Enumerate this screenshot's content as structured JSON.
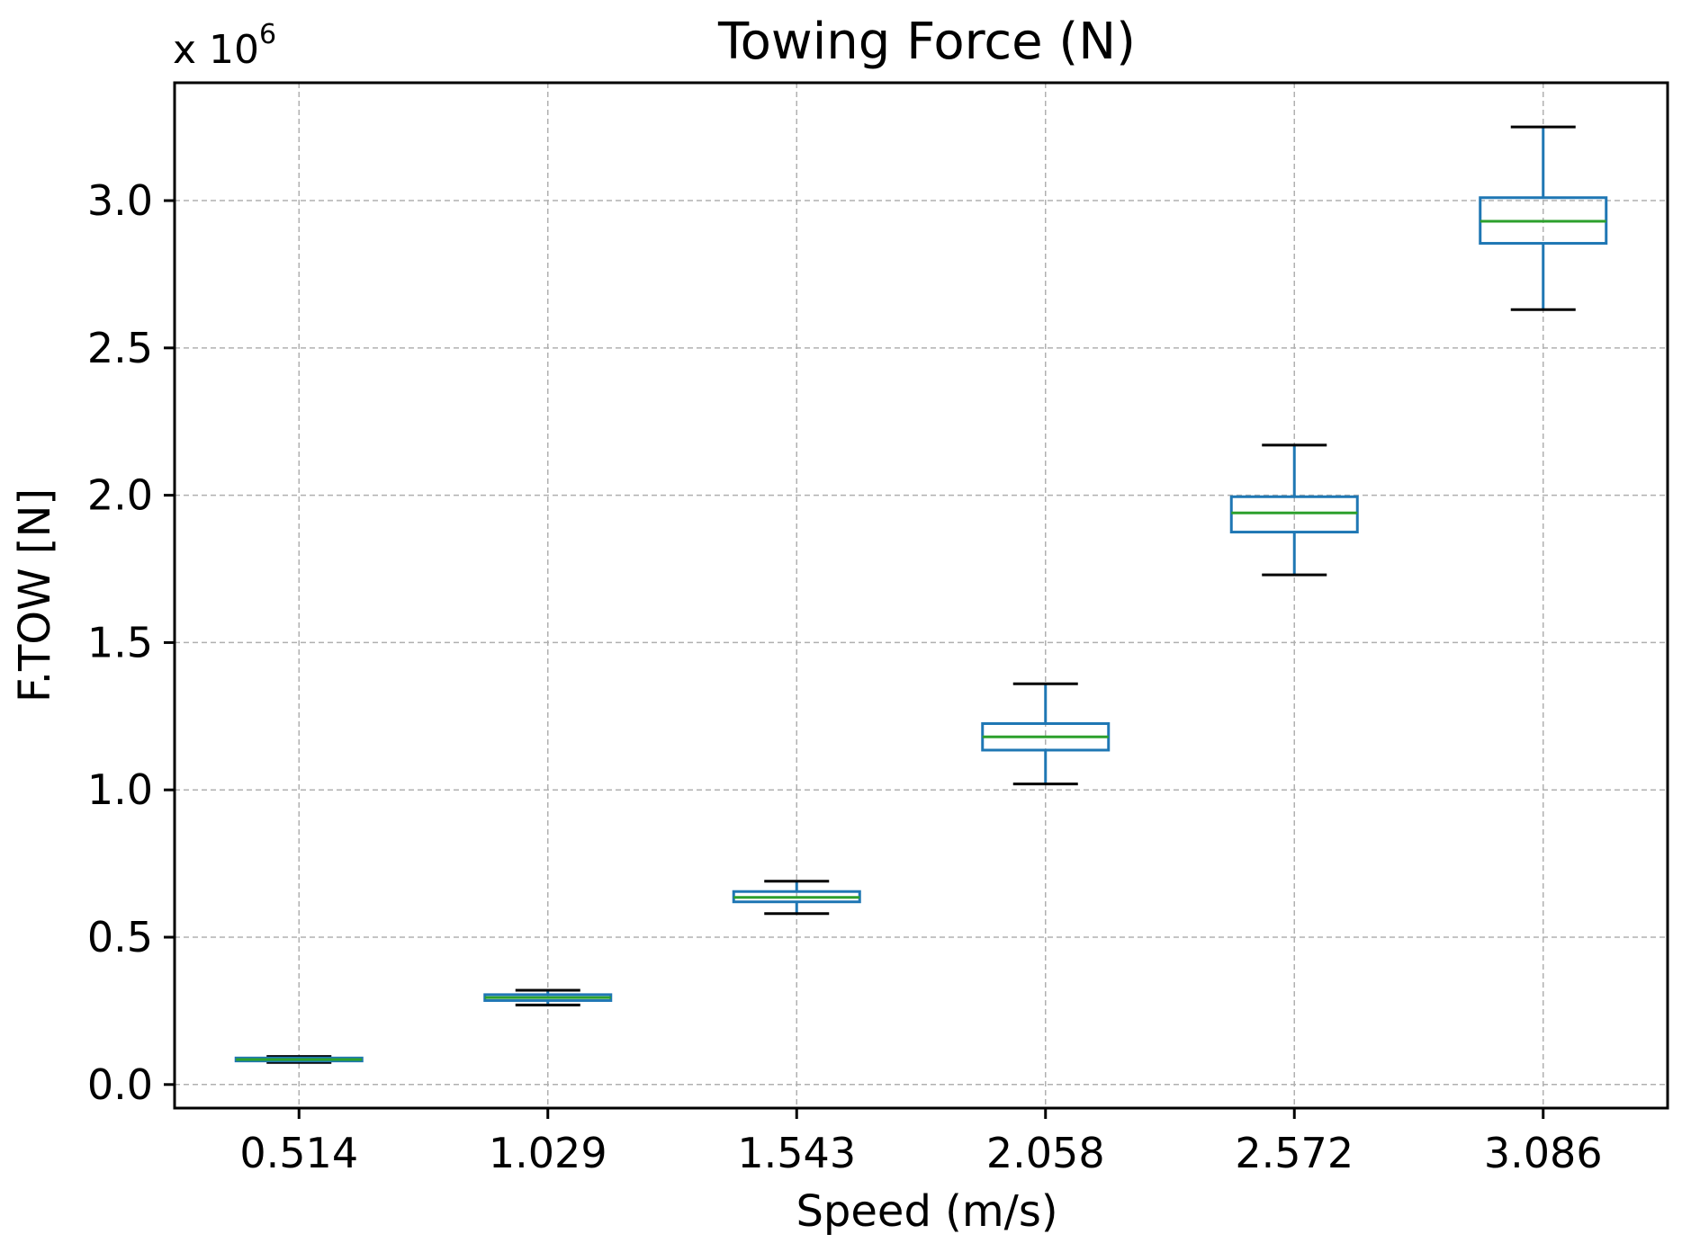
{
  "chart_data": {
    "type": "box",
    "title": "Towing Force (N)",
    "xlabel": "Speed (m/s)",
    "ylabel": "F.TOW [N]",
    "y_offset_label": "x 10",
    "y_offset_exponent": "6",
    "ylim": [
      -0.08,
      3.4
    ],
    "yticks": [
      0.0,
      0.5,
      1.0,
      1.5,
      2.0,
      2.5,
      3.0
    ],
    "ytick_labels": [
      "0.0",
      "0.5",
      "1.0",
      "1.5",
      "2.0",
      "2.5",
      "3.0"
    ],
    "categories": [
      "0.514",
      "1.029",
      "1.543",
      "2.058",
      "2.572",
      "3.086"
    ],
    "grid": true,
    "units_multiplier": 1000000,
    "boxes": [
      {
        "category": "0.514",
        "whisker_low": 0.075,
        "q1": 0.08,
        "median": 0.085,
        "q3": 0.09,
        "whisker_high": 0.095
      },
      {
        "category": "1.029",
        "whisker_low": 0.27,
        "q1": 0.285,
        "median": 0.295,
        "q3": 0.305,
        "whisker_high": 0.32
      },
      {
        "category": "1.543",
        "whisker_low": 0.58,
        "q1": 0.62,
        "median": 0.635,
        "q3": 0.655,
        "whisker_high": 0.69
      },
      {
        "category": "2.058",
        "whisker_low": 1.02,
        "q1": 1.135,
        "median": 1.18,
        "q3": 1.225,
        "whisker_high": 1.36
      },
      {
        "category": "2.572",
        "whisker_low": 1.73,
        "q1": 1.875,
        "median": 1.94,
        "q3": 1.995,
        "whisker_high": 2.17
      },
      {
        "category": "3.086",
        "whisker_low": 2.63,
        "q1": 2.855,
        "median": 2.93,
        "q3": 3.01,
        "whisker_high": 3.25
      }
    ],
    "colors": {
      "box": "#1f77b4",
      "median": "#2ca02c",
      "cap": "#000000",
      "grid": "#b0b0b0",
      "axes": "#000000"
    }
  }
}
